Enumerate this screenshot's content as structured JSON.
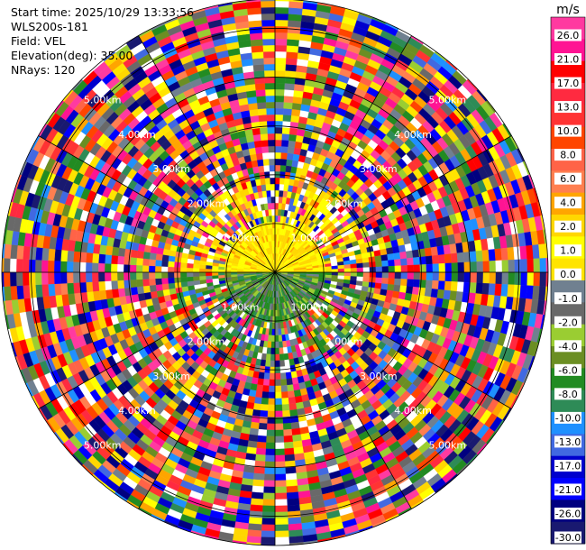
{
  "info": {
    "start_time": "Start time: 2025/10/29 13:33:56",
    "station": "WLS200s-181",
    "field": "Field: VEL",
    "elevation": "Elevation(deg): 35.00",
    "nrays": "NRays: 120"
  },
  "chart_data": {
    "type": "heatmap",
    "projection": "polar-ppi",
    "field": "VEL",
    "n_rays": 120,
    "range_rings_km": [
      "1.00km",
      "2.00km",
      "3.00km",
      "4.00km",
      "5.00km"
    ],
    "max_range_km": 5.6,
    "colorbar": {
      "unit": "m/s",
      "tick_labels": [
        "26.0",
        "21.0",
        "17.0",
        "13.0",
        "10.0",
        "8.0",
        "6.0",
        "4.0",
        "2.0",
        "1.0",
        "0.0",
        "-1.0",
        "-2.0",
        "-4.0",
        "-6.0",
        "-8.0",
        "-10.0",
        "-13.0",
        "-17.0",
        "-21.0",
        "-26.0",
        "-30.0"
      ],
      "colors": [
        "#ff3aa0",
        "#ff1493",
        "#ff0000",
        "#ff2a40",
        "#ff3333",
        "#ff4500",
        "#ff6347",
        "#ff7f50",
        "#ffa500",
        "#ffd700",
        "#ffff00",
        "#ffe400",
        "#708090",
        "#696969",
        "#9acd32",
        "#6b8e23",
        "#228b22",
        "#2e8b57",
        "#1e90ff",
        "#4169e1",
        "#0000cd",
        "#0000ff",
        "#000080",
        "#191970"
      ]
    },
    "near_field": {
      "radius_km": 1.0,
      "north_half": "positive, yellow/orange (~1 to 6 m/s)",
      "south_half": "negative, green/gray (~-2 to -8 m/s)"
    },
    "far_field": "noisy, all colors"
  }
}
